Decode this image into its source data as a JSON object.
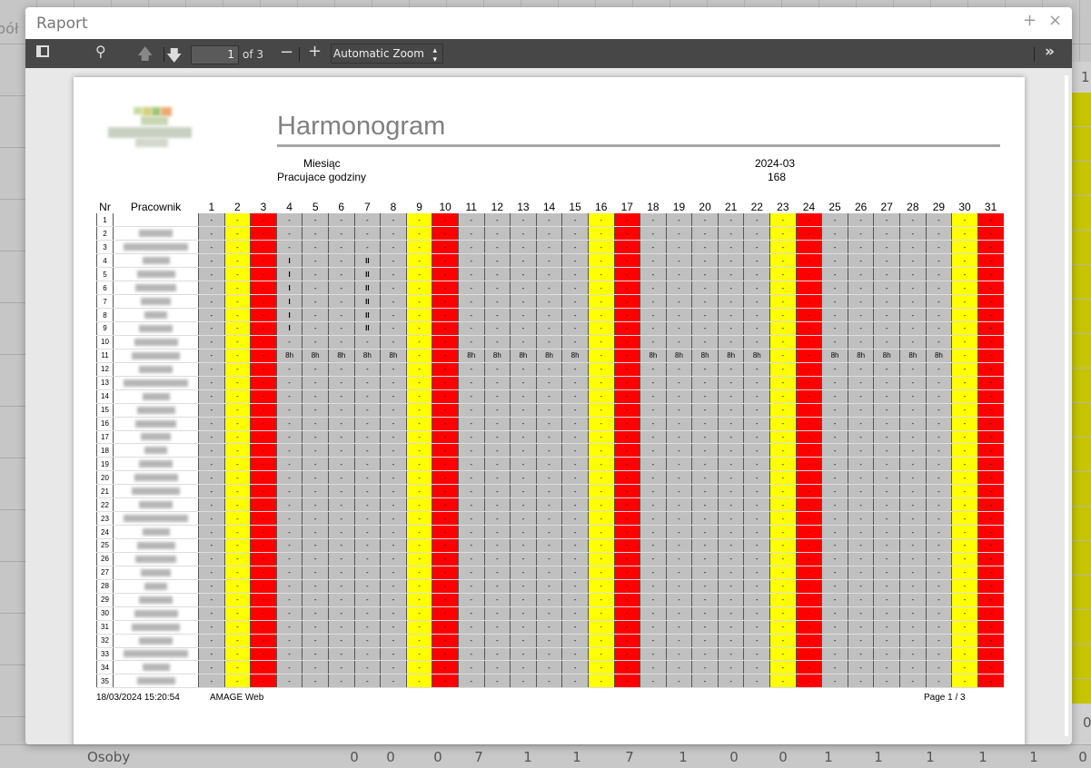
{
  "background": {
    "left_text": "pół",
    "right_top": "1",
    "right_bottom": "0",
    "bottom_row": {
      "label": "Osoby",
      "values": [
        "0",
        "0",
        "0",
        "7",
        "1",
        "1",
        "7",
        "1",
        "0",
        "0",
        "1",
        "1",
        "1",
        "1",
        "1",
        "0"
      ]
    }
  },
  "modal": {
    "title": "Raport",
    "maximize_icon": "+",
    "close_icon": "×"
  },
  "toolbar": {
    "page": "1",
    "of_label": "of 3",
    "zoom": "Automatic Zoom",
    "minus": "−",
    "plus": "+"
  },
  "report": {
    "title": "Harmonogram",
    "month_label": "Miesiąc",
    "month_value": "2024-03",
    "hours_label": "Pracujace godziny",
    "hours_value": "168",
    "col_nr": "Nr",
    "col_employee": "Pracownik",
    "days": [
      "1",
      "2",
      "3",
      "4",
      "5",
      "6",
      "7",
      "8",
      "9",
      "10",
      "11",
      "12",
      "13",
      "14",
      "15",
      "16",
      "17",
      "18",
      "19",
      "20",
      "21",
      "22",
      "23",
      "24",
      "25",
      "26",
      "27",
      "28",
      "29",
      "30",
      "31"
    ],
    "saturdays": [
      2,
      9,
      16,
      23,
      30
    ],
    "sundays": [
      3,
      10,
      17,
      24,
      31
    ],
    "colors": {
      "weekday": "#c0c0c0",
      "saturday": "#ffff00",
      "sunday": "#ff0000"
    },
    "rows": [
      {
        "nr": "1",
        "cells": "- - - - - - - - - - - - - - - - - - - - - - - - - - - - - - -"
      },
      {
        "nr": "2",
        "cells": "- - - - - - - - - - - - - - - - - - - - - - - - - - - - - - -"
      },
      {
        "nr": "3",
        "cells": "- - - - - - - - - - - - - - - - - - - - - - - - - - - - - - -"
      },
      {
        "nr": "4",
        "cells": "- - - I - - II - - - - - - - - - - - - - - - - - - - - - - - -"
      },
      {
        "nr": "5",
        "cells": "- - - I - - II - - - - - - - - - - - - - - - - - - - - - - - -"
      },
      {
        "nr": "6",
        "cells": "- - - I - - II - - - - - - - - - - - - - - - - - - - - - - - -"
      },
      {
        "nr": "7",
        "cells": "- - - I - - II - - - - - - - - - - - - - - - - - - - - - - - -"
      },
      {
        "nr": "8",
        "cells": "- - - I - - II - - - - - - - - - - - - - - - - - - - - - - - -"
      },
      {
        "nr": "9",
        "cells": "- - - I - - II - - - - - - - - - - - - - - - - - - - - - - - -"
      },
      {
        "nr": "10",
        "cells": "- - - - - - - - - - - - - - - - - - - - - - - - - - - - - - -"
      },
      {
        "nr": "11",
        "cells": "- - - 8h 8h 8h 8h 8h - - 8h 8h 8h 8h 8h - - 8h 8h 8h 8h 8h - - 8h 8h 8h 8h 8h - -"
      },
      {
        "nr": "12",
        "cells": "- - - - - - - - - - - - - - - - - - - - - - - - - - - - - - -"
      },
      {
        "nr": "13",
        "cells": "- - - - - - - - - - - - - - - - - - - - - - - - - - - - - - -"
      },
      {
        "nr": "14",
        "cells": "- - - - - - - - - - - - - - - - - - - - - - - - - - - - - - -"
      },
      {
        "nr": "15",
        "cells": "- - - - - - - - - - - - - - - - - - - - - - - - - - - - - - -"
      },
      {
        "nr": "16",
        "cells": "- - - - - - - - - - - - - - - - - - - - - - - - - - - - - - -"
      },
      {
        "nr": "17",
        "cells": "- - - - - - - - - - - - - - - - - - - - - - - - - - - - - - -"
      },
      {
        "nr": "18",
        "cells": "- - - - - - - - - - - - - - - - - - - - - - - - - - - - - - -"
      },
      {
        "nr": "19",
        "cells": "- - - - - - - - - - - - - - - - - - - - - - - - - - - - - - -"
      },
      {
        "nr": "20",
        "cells": "- - - - - - - - - - - - - - - - - - - - - - - - - - - - - - -"
      },
      {
        "nr": "21",
        "cells": "- - - - - - - - - - - - - - - - - - - - - - - - - - - - - - -"
      },
      {
        "nr": "22",
        "cells": "- - - - - - - - - - - - - - - - - - - - - - - - - - - - - - -"
      },
      {
        "nr": "23",
        "cells": "- - - - - - - - - - - - - - - - - - - - - - - - - - - - - - -"
      },
      {
        "nr": "24",
        "cells": "- - - - - - - - - - - - - - - - - - - - - - - - - - - - - - -"
      },
      {
        "nr": "25",
        "cells": "- - - - - - - - - - - - - - - - - - - - - - - - - - - - - - -"
      },
      {
        "nr": "26",
        "cells": "- - - - - - - - - - - - - - - - - - - - - - - - - - - - - - -"
      },
      {
        "nr": "27",
        "cells": "- - - - - - - - - - - - - - - - - - - - - - - - - - - - - - -"
      },
      {
        "nr": "28",
        "cells": "- - - - - - - - - - - - - - - - - - - - - - - - - - - - - - -"
      },
      {
        "nr": "29",
        "cells": "- - - - - - - - - - - - - - - - - - - - - - - - - - - - - - -"
      },
      {
        "nr": "30",
        "cells": "- - - - - - - - - - - - - - - - - - - - - - - - - - - - - - -"
      },
      {
        "nr": "31",
        "cells": "- - - - - - - - - - - - - - - - - - - - - - - - - - - - - - -"
      },
      {
        "nr": "32",
        "cells": "- - - - - - - - - - - - - - - - - - - - - - - - - - - - - - -"
      },
      {
        "nr": "33",
        "cells": "- - - - - - - - - - - - - - - - - - - - - - - - - - - - - - -"
      },
      {
        "nr": "34",
        "cells": "- - - - - - - - - - - - - - - - - - - - - - - - - - - - - - -"
      },
      {
        "nr": "35",
        "cells": "- - - - - - - - - - - - - - - - - - - - - - - - - - - - - - -"
      }
    ],
    "footer": {
      "timestamp": "18/03/2024 15:20:54",
      "app": "AMAGE Web",
      "page": "Page 1 / 3"
    }
  }
}
